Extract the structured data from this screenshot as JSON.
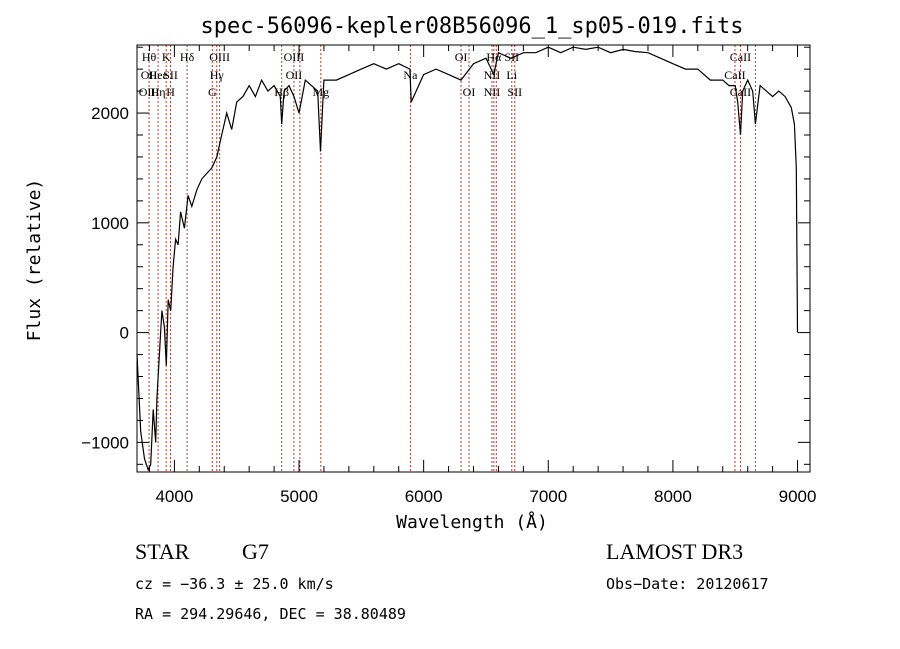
{
  "chart_data": {
    "type": "line",
    "title": "spec-56096-kepler08B56096_1_sp05-019.fits",
    "xlabel": "Wavelength (Å)",
    "ylabel": "Flux (relative)",
    "xlim": [
      3700,
      9100
    ],
    "ylim": [
      -1270,
      2620
    ],
    "x_ticks": [
      4000,
      5000,
      6000,
      7000,
      8000,
      9000
    ],
    "y_ticks": [
      -1000,
      0,
      1000,
      2000
    ],
    "grid": false,
    "series": [
      {
        "color": "#000000",
        "x": [
          3700,
          3730,
          3760,
          3790,
          3810,
          3830,
          3850,
          3860,
          3880,
          3900,
          3920,
          3935,
          3950,
          3970,
          3990,
          4010,
          4030,
          4050,
          4080,
          4110,
          4140,
          4180,
          4220,
          4260,
          4300,
          4340,
          4380,
          4420,
          4460,
          4500,
          4550,
          4600,
          4650,
          4700,
          4750,
          4800,
          4850,
          4861,
          4880,
          4920,
          4960,
          5000,
          5050,
          5100,
          5150,
          5172,
          5200,
          5300,
          5400,
          5500,
          5600,
          5700,
          5800,
          5890,
          5900,
          6000,
          6100,
          6200,
          6300,
          6400,
          6500,
          6563,
          6600,
          6700,
          6800,
          6900,
          7000,
          7100,
          7200,
          7300,
          7400,
          7500,
          7600,
          7700,
          7800,
          7900,
          8000,
          8100,
          8200,
          8300,
          8400,
          8450,
          8500,
          8520,
          8542,
          8560,
          8600,
          8640,
          8662,
          8700,
          8750,
          8800,
          8850,
          8900,
          8950,
          8975,
          8990,
          9000
        ],
        "y": [
          -200,
          -900,
          -1150,
          -1250,
          -1200,
          -700,
          -1000,
          -600,
          -200,
          200,
          50,
          -300,
          300,
          200,
          600,
          850,
          800,
          1100,
          950,
          1250,
          1150,
          1300,
          1400,
          1450,
          1500,
          1600,
          1800,
          2000,
          1850,
          2100,
          2150,
          2250,
          2150,
          2300,
          2200,
          2250,
          2150,
          1900,
          2200,
          2250,
          2150,
          2000,
          2300,
          2250,
          2200,
          1650,
          2300,
          2300,
          2350,
          2400,
          2450,
          2400,
          2450,
          2400,
          2100,
          2350,
          2400,
          2350,
          2300,
          2450,
          2500,
          2350,
          2550,
          2500,
          2550,
          2550,
          2600,
          2550,
          2600,
          2580,
          2600,
          2550,
          2580,
          2560,
          2550,
          2500,
          2450,
          2400,
          2400,
          2300,
          2300,
          2250,
          2250,
          2100,
          1800,
          2200,
          2300,
          2200,
          1900,
          2250,
          2200,
          2150,
          2200,
          2150,
          2050,
          1900,
          1500,
          0
        ]
      }
    ],
    "annotations": {
      "line_color": "#c0392b",
      "lines": [
        {
          "x": 3797,
          "labels": [
            "Hθ",
            "OII",
            "OIII"
          ]
        },
        {
          "x": 3869,
          "labels": [
            "",
            "Heε",
            "Hη"
          ]
        },
        {
          "x": 3934,
          "labels": [
            "K",
            "",
            ""
          ]
        },
        {
          "x": 3969,
          "labels": [
            "",
            "SII",
            "H"
          ]
        },
        {
          "x": 4102,
          "labels": [
            "Hδ",
            "",
            ""
          ]
        },
        {
          "x": 4304,
          "labels": [
            "",
            "",
            "G"
          ]
        },
        {
          "x": 4340,
          "labels": [
            "",
            "Hγ",
            ""
          ]
        },
        {
          "x": 4363,
          "labels": [
            "OIII",
            "",
            ""
          ]
        },
        {
          "x": 4861,
          "labels": [
            "",
            "",
            "Hβ"
          ]
        },
        {
          "x": 4959,
          "labels": [
            "OIII",
            "OII",
            ""
          ]
        },
        {
          "x": 5007,
          "labels": [
            "",
            "",
            ""
          ]
        },
        {
          "x": 5175,
          "labels": [
            "",
            "",
            "Mg"
          ]
        },
        {
          "x": 5894,
          "labels": [
            "",
            "Na",
            ""
          ]
        },
        {
          "x": 6300,
          "labels": [
            "OI",
            "",
            ""
          ]
        },
        {
          "x": 6364,
          "labels": [
            "",
            "",
            "OI"
          ]
        },
        {
          "x": 6548,
          "labels": [
            "",
            "NII",
            "NII"
          ]
        },
        {
          "x": 6563,
          "labels": [
            "Hα",
            "",
            ""
          ]
        },
        {
          "x": 6583,
          "labels": [
            "",
            "",
            ""
          ]
        },
        {
          "x": 6707,
          "labels": [
            "SII",
            "Li",
            ""
          ]
        },
        {
          "x": 6731,
          "labels": [
            "",
            "",
            "SII"
          ]
        },
        {
          "x": 8498,
          "labels": [
            "",
            "CaII",
            ""
          ]
        },
        {
          "x": 8542,
          "labels": [
            "CaII",
            "",
            "CaII"
          ]
        },
        {
          "x": 8662,
          "labels": [
            "",
            "",
            ""
          ]
        }
      ]
    }
  },
  "info": {
    "object_class": "STAR",
    "subclass": "G7",
    "survey": "LAMOST DR3",
    "cz_line": "cz = −36.3 ± 25.0 km/s",
    "obs_date": "Obs−Date: 20120617",
    "coords": "RA = 294.29646, DEC =  38.80489"
  }
}
